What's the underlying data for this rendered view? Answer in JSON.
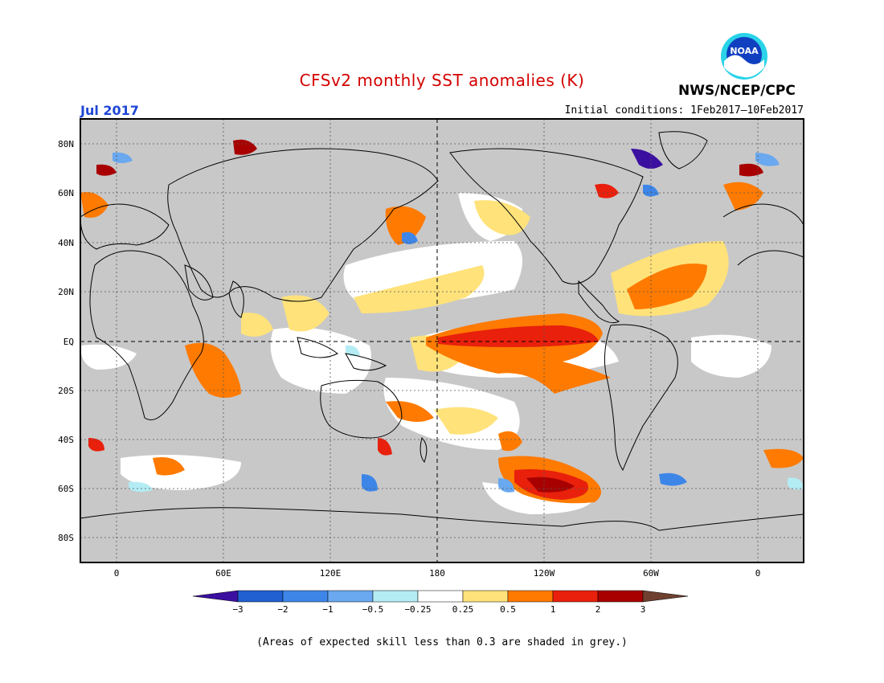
{
  "title": "CFSv2 monthly SST anomalies (K)",
  "month_label": "Jul 2017",
  "initial_conditions": "Initial conditions: 1Feb2017–10Feb2017",
  "agency": "NWS/NCEP/CPC",
  "logo_text": "NOAA",
  "lat_ticks": [
    "80N",
    "60N",
    "40N",
    "20N",
    "EQ",
    "20S",
    "40S",
    "60S",
    "80S"
  ],
  "lon_ticks": [
    "0",
    "60E",
    "120E",
    "180",
    "120W",
    "60W",
    "0"
  ],
  "colorbar": {
    "labels": [
      "−3",
      "−2",
      "−1",
      "−0.5",
      "−0.25",
      "0.25",
      "0.5",
      "1",
      "2",
      "3"
    ],
    "colors": [
      "#3b0fa0",
      "#1f5fd0",
      "#3d86e8",
      "#6aa8ef",
      "#b4ecf4",
      "#ffffff",
      "#ffe27a",
      "#ff7a00",
      "#e8200c",
      "#a80000",
      "#6f4030"
    ]
  },
  "colors": {
    "grey_mask": "#c8c8c8",
    "title_red": "#d40000",
    "label_blue": "#1f47d6"
  },
  "footnote": "(Areas of expected skill less than 0.3 are shaded in grey.)"
}
